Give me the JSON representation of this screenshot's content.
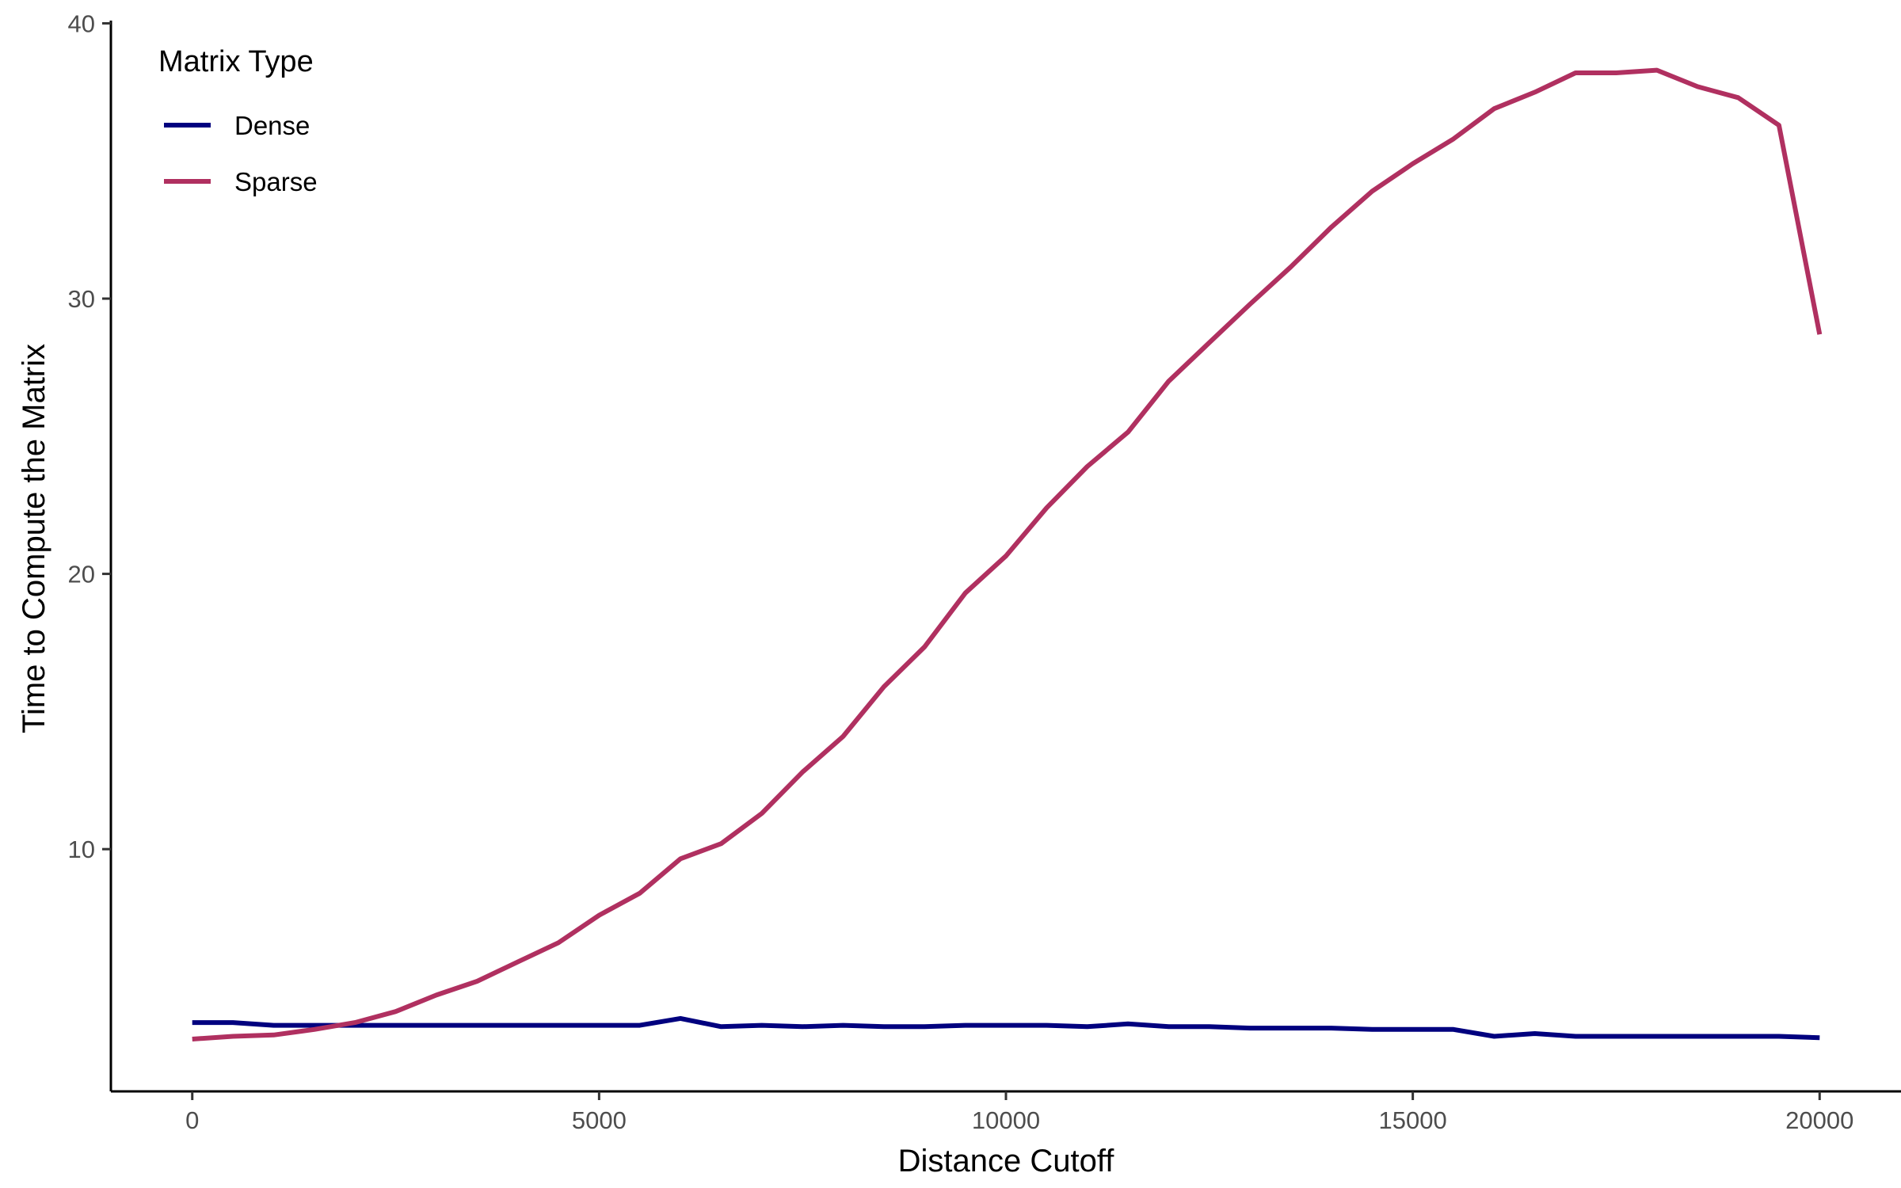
{
  "chart_data": {
    "type": "line",
    "xlabel": "Distance Cutoff",
    "ylabel": "Time to Compute the Matrix",
    "xlim": [
      -1000,
      21000
    ],
    "ylim": [
      1.2,
      40.1
    ],
    "xticks": [
      0,
      5000,
      10000,
      15000,
      20000
    ],
    "yticks": [
      10,
      20,
      30,
      40
    ],
    "x_tick_labels": [
      "0",
      "5000",
      "10000",
      "15000",
      "20000"
    ],
    "y_tick_labels": [
      "10",
      "20",
      "30",
      "40"
    ],
    "grid": false,
    "legend": {
      "title": "Matrix Type",
      "position": "top-left"
    },
    "x": [
      0,
      500,
      1000,
      1500,
      2000,
      2500,
      3000,
      3500,
      4000,
      4500,
      5000,
      5500,
      6000,
      6500,
      7000,
      7500,
      8000,
      8500,
      9000,
      9500,
      10000,
      10500,
      11000,
      11500,
      12000,
      12500,
      13000,
      13500,
      14000,
      14500,
      15000,
      15500,
      16000,
      16500,
      17000,
      17500,
      18000,
      18500,
      19000,
      19500,
      20000
    ],
    "series": [
      {
        "name": "Dense",
        "color": "#00007f",
        "values": [
          3.7,
          3.7,
          3.6,
          3.6,
          3.6,
          3.6,
          3.6,
          3.6,
          3.6,
          3.6,
          3.6,
          3.6,
          3.85,
          3.55,
          3.6,
          3.55,
          3.6,
          3.55,
          3.55,
          3.6,
          3.6,
          3.6,
          3.55,
          3.65,
          3.55,
          3.55,
          3.5,
          3.5,
          3.5,
          3.45,
          3.45,
          3.45,
          3.2,
          3.3,
          3.2,
          3.2,
          3.2,
          3.2,
          3.2,
          3.2,
          3.15
        ]
      },
      {
        "name": "Sparse",
        "color": "#b03060",
        "values": [
          3.1,
          3.2,
          3.25,
          3.45,
          3.7,
          4.1,
          4.7,
          5.2,
          5.9,
          6.6,
          7.6,
          8.4,
          9.65,
          10.2,
          11.3,
          12.8,
          14.1,
          15.9,
          17.35,
          19.3,
          20.65,
          22.4,
          23.9,
          25.15,
          27.0,
          28.4,
          29.8,
          31.15,
          32.6,
          33.9,
          34.9,
          35.8,
          36.9,
          37.5,
          38.2,
          38.2,
          38.3,
          37.7,
          37.3,
          36.3,
          28.7
        ]
      }
    ]
  }
}
